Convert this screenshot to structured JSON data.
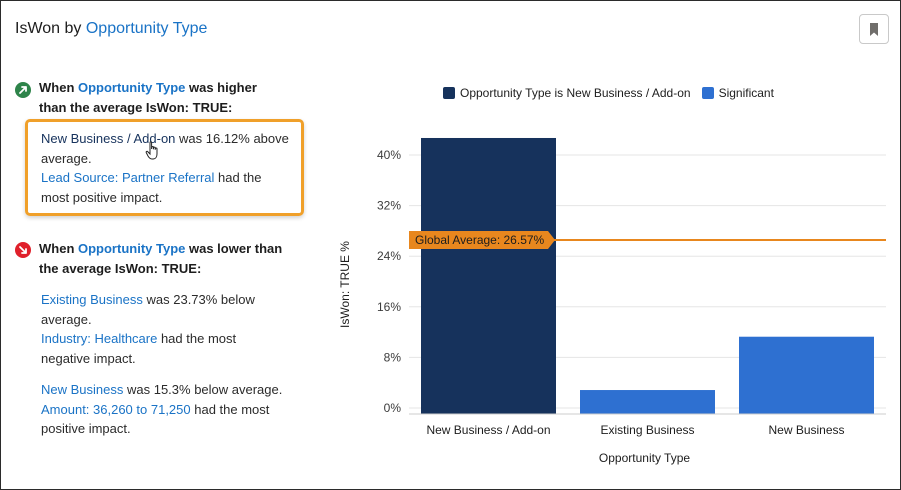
{
  "card": {
    "title_prefix": "IsWon by ",
    "title_field": "Opportunity Type",
    "bookmark_icon": "bookmark-icon"
  },
  "higher": {
    "badge_color": "#2e844a",
    "head_pre": "When ",
    "head_field": "Opportunity Type",
    "head_post_1": " was higher",
    "head_post_2": "than the average IsWon: TRUE:",
    "finding": {
      "value_link": "New Business / Add-on",
      "text_1": " was 16.12% above",
      "text_2": "average.",
      "factor_link": "Lead Source: Partner Referral",
      "text_3": " had the",
      "text_4": "most positive impact."
    }
  },
  "lower": {
    "badge_color": "#e0202b",
    "head_pre": "When ",
    "head_field": "Opportunity Type",
    "head_post_1": " was lower than",
    "head_post_2": "the average IsWon: TRUE:",
    "findings": [
      {
        "value_link": "Existing Business",
        "text_1": " was 23.73% below",
        "text_2": "average.",
        "factor_link": "Industry: Healthcare",
        "text_3": " had the most",
        "text_4": "negative impact."
      },
      {
        "value_link": "New Business",
        "text_1": " was 15.3% below average.",
        "factor_link": "Amount: 36,260 to 71,250",
        "text_3": " had the most",
        "text_4": "positive impact."
      }
    ]
  },
  "colors": {
    "dark_bar": "#16325c",
    "light_bar": "#2e70d1",
    "average_line": "#e8871e",
    "link": "#1a73c6",
    "highlight": "#f0a02a"
  },
  "chart_data": {
    "type": "bar",
    "legend": [
      {
        "name": "Opportunity Type is New Business / Add-on",
        "color": "#16325c"
      },
      {
        "name": "Significant",
        "color": "#2e70d1"
      }
    ],
    "legend_position": "top",
    "categories": [
      "New Business / Add-on",
      "Existing Business",
      "New Business"
    ],
    "values": [
      42.69,
      2.84,
      11.27
    ],
    "bar_colors": [
      "#16325c",
      "#2e70d1",
      "#2e70d1"
    ],
    "ylabel": "IsWon: TRUE %",
    "xlabel": "Opportunity Type",
    "ylim": [
      0,
      40
    ],
    "yticks": [
      "0%",
      "8%",
      "16%",
      "24%",
      "32%",
      "40%"
    ],
    "ytick_values": [
      0,
      8,
      16,
      24,
      32,
      40
    ],
    "reference_line": {
      "label": "Global Average: 26.57%",
      "value": 26.57
    },
    "grid": true
  }
}
